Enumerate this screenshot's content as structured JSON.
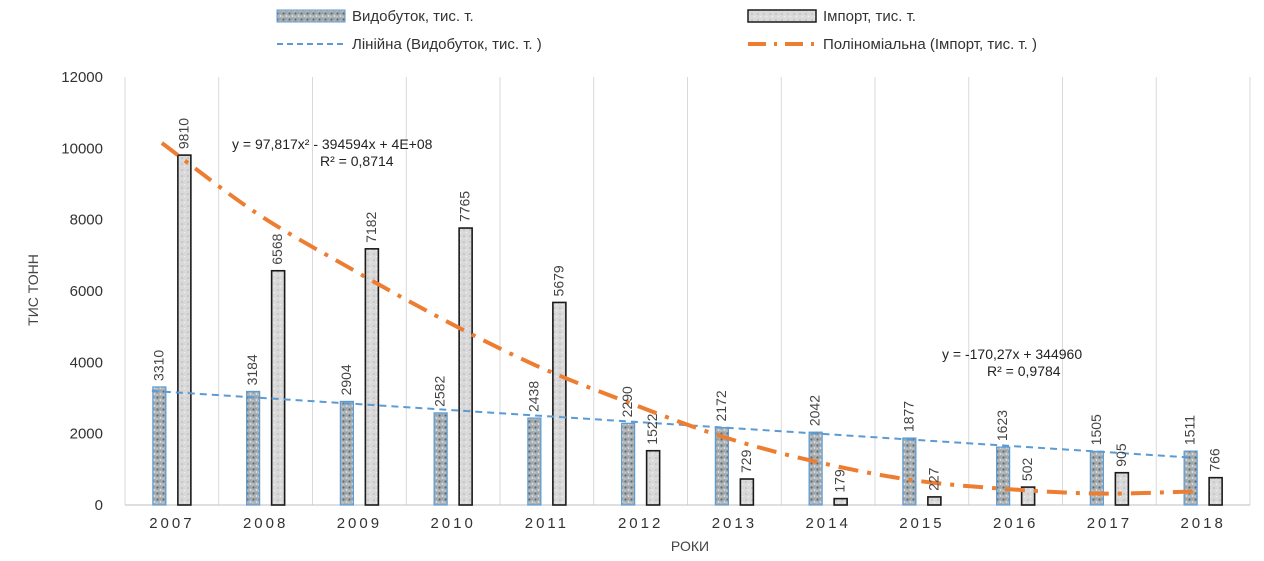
{
  "chart_data": {
    "type": "bar",
    "categories": [
      "2007",
      "2008",
      "2009",
      "2010",
      "2011",
      "2012",
      "2013",
      "2014",
      "2015",
      "2016",
      "2017",
      "2018"
    ],
    "series": [
      {
        "name": "Видобуток, тис. т.",
        "values": [
          3310,
          3184,
          2904,
          2582,
          2438,
          2290,
          2172,
          2042,
          1877,
          1623,
          1505,
          1511
        ],
        "color": "#7f8c8d",
        "border": "#5b9bd5"
      },
      {
        "name": "Імпорт, тис. т.",
        "values": [
          9810,
          6568,
          7182,
          7765,
          5679,
          1522,
          729,
          179,
          227,
          502,
          905,
          766
        ],
        "color": "#d0d0d0",
        "border": "#1a1a1a"
      }
    ],
    "trendlines": [
      {
        "name": "Лінійна (Видобуток, тис. т. )",
        "kind": "linear",
        "of_series": "Видобуток, тис. т.",
        "color": "#5b9bd5",
        "equation": "y = -170,27x + 344960",
        "r2": "R² = 0,9784",
        "start_value": 3200,
        "end_value": 1330
      },
      {
        "name": "Поліноміальна (Імпорт, тис. т. )",
        "kind": "polynomial",
        "of_series": "Імпорт, тис. т.",
        "color": "#ed7d31",
        "equation": "y = 97,817x² - 394594x + 4E+08",
        "r2": "R² = 0,8714",
        "points": [
          [
            2007,
            10150
          ],
          [
            2008,
            8200
          ],
          [
            2009,
            6650
          ],
          [
            2010,
            5200
          ],
          [
            2011,
            3900
          ],
          [
            2012,
            2850
          ],
          [
            2013,
            1900
          ],
          [
            2014,
            1200
          ],
          [
            2015,
            700
          ],
          [
            2016,
            450
          ],
          [
            2017,
            320
          ],
          [
            2018,
            380
          ]
        ]
      }
    ],
    "xlabel": "РОКИ",
    "ylabel": "ТИС ТОНН",
    "ylim": [
      0,
      12000
    ],
    "yticks": [
      "0",
      "2000",
      "4000",
      "6000",
      "8000",
      "10000",
      "12000"
    ],
    "grid": "vertical",
    "legend_position": "top"
  }
}
